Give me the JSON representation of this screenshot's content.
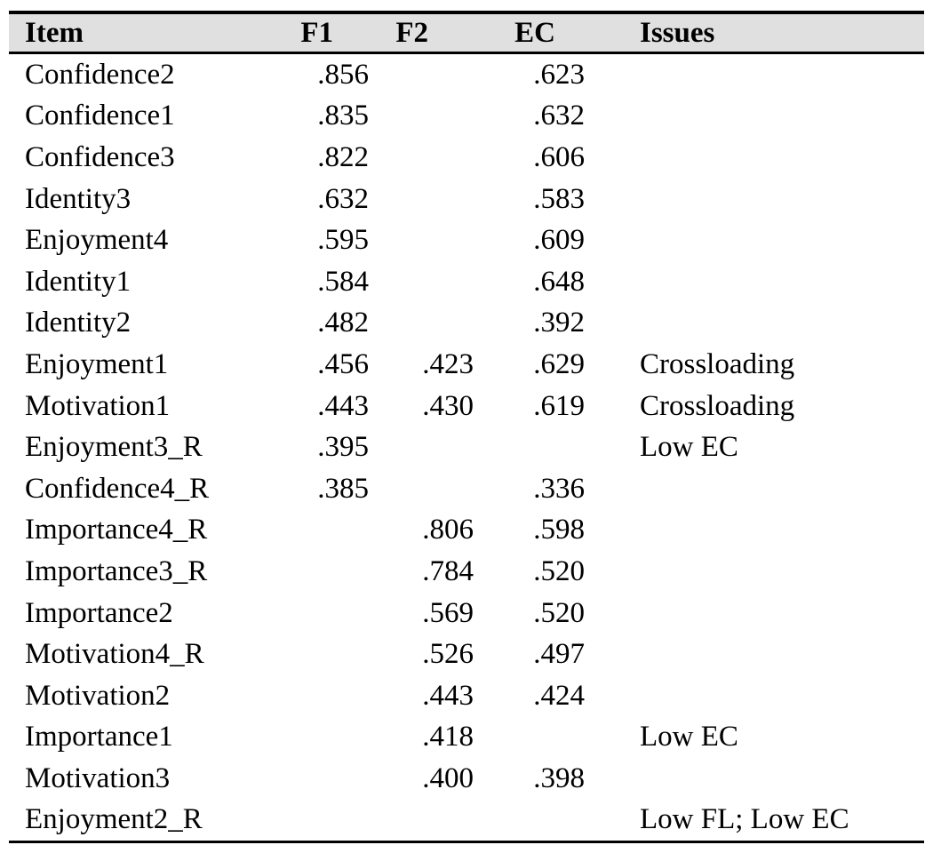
{
  "table": {
    "columns": [
      "Item",
      "F1",
      "F2",
      "EC",
      "Issues"
    ],
    "rows": [
      {
        "item": "Confidence2",
        "f1": ".856",
        "f2": "",
        "ec": ".623",
        "issues": ""
      },
      {
        "item": "Confidence1",
        "f1": ".835",
        "f2": "",
        "ec": ".632",
        "issues": ""
      },
      {
        "item": "Confidence3",
        "f1": ".822",
        "f2": "",
        "ec": ".606",
        "issues": ""
      },
      {
        "item": "Identity3",
        "f1": ".632",
        "f2": "",
        "ec": ".583",
        "issues": ""
      },
      {
        "item": "Enjoyment4",
        "f1": ".595",
        "f2": "",
        "ec": ".609",
        "issues": ""
      },
      {
        "item": "Identity1",
        "f1": ".584",
        "f2": "",
        "ec": ".648",
        "issues": ""
      },
      {
        "item": "Identity2",
        "f1": ".482",
        "f2": "",
        "ec": ".392",
        "issues": ""
      },
      {
        "item": "Enjoyment1",
        "f1": ".456",
        "f2": ".423",
        "ec": ".629",
        "issues": "Crossloading"
      },
      {
        "item": "Motivation1",
        "f1": ".443",
        "f2": ".430",
        "ec": ".619",
        "issues": "Crossloading"
      },
      {
        "item": "Enjoyment3_R",
        "f1": ".395",
        "f2": "",
        "ec": "",
        "issues": "Low EC"
      },
      {
        "item": "Confidence4_R",
        "f1": ".385",
        "f2": "",
        "ec": ".336",
        "issues": ""
      },
      {
        "item": "Importance4_R",
        "f1": "",
        "f2": ".806",
        "ec": ".598",
        "issues": ""
      },
      {
        "item": "Importance3_R",
        "f1": "",
        "f2": ".784",
        "ec": ".520",
        "issues": ""
      },
      {
        "item": "Importance2",
        "f1": "",
        "f2": ".569",
        "ec": ".520",
        "issues": ""
      },
      {
        "item": "Motivation4_R",
        "f1": "",
        "f2": ".526",
        "ec": ".497",
        "issues": ""
      },
      {
        "item": "Motivation2",
        "f1": "",
        "f2": ".443",
        "ec": ".424",
        "issues": ""
      },
      {
        "item": "Importance1",
        "f1": "",
        "f2": ".418",
        "ec": "",
        "issues": "Low EC"
      },
      {
        "item": "Motivation3",
        "f1": "",
        "f2": ".400",
        "ec": ".398",
        "issues": ""
      },
      {
        "item": "Enjoyment2_R",
        "f1": "",
        "f2": "",
        "ec": "",
        "issues": "Low FL; Low EC"
      }
    ]
  },
  "colors": {
    "header_background": "#e0e0e0",
    "rule": "#000000",
    "text": "#000000",
    "page_background": "#ffffff"
  }
}
